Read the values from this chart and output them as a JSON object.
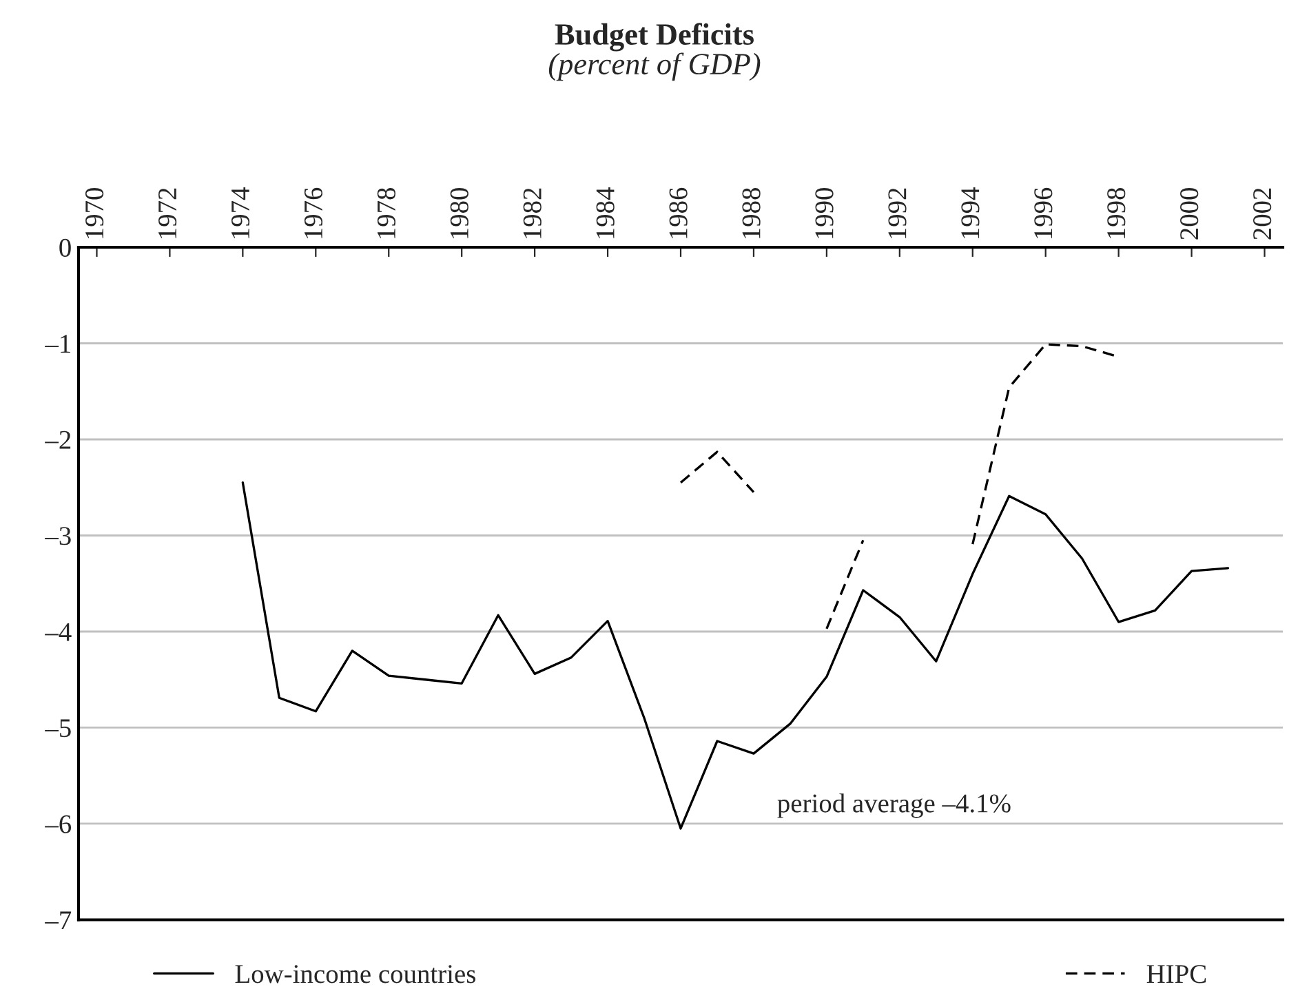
{
  "chart_data": {
    "type": "line",
    "title": "Budget Deficits",
    "subtitle": "(percent of GDP)",
    "x": [
      1974,
      1975,
      1976,
      1977,
      1978,
      1979,
      1980,
      1981,
      1982,
      1983,
      1984,
      1985,
      1986,
      1987,
      1988,
      1989,
      1990,
      1991,
      1992,
      1993,
      1994,
      1995,
      1996,
      1997,
      1998,
      1999,
      2000,
      2001
    ],
    "series": [
      {
        "name": "Low-income countries",
        "color": "#000000",
        "line_style": "solid",
        "values": [
          -2.45,
          -4.69,
          -4.83,
          -4.2,
          -4.46,
          -4.5,
          -4.54,
          -3.83,
          -4.44,
          -4.27,
          -3.89,
          -4.9,
          -6.05,
          -5.14,
          -5.27,
          -4.96,
          -4.47,
          -3.57,
          -3.85,
          -4.31,
          -3.4,
          -2.59,
          -2.78,
          -3.24,
          -3.9,
          -3.78,
          -3.37,
          -3.34
        ]
      },
      {
        "name": "HIPC",
        "color": "#000000",
        "line_style": "dashed",
        "values": [
          null,
          null,
          null,
          null,
          null,
          null,
          null,
          null,
          null,
          null,
          null,
          null,
          -2.45,
          -2.13,
          -2.55,
          null,
          -3.97,
          -3.05,
          null,
          null,
          -3.09,
          -1.46,
          -1.01,
          -1.03,
          -1.14,
          null,
          null,
          null
        ]
      }
    ],
    "xlim": [
      1969.5,
      2002.5
    ],
    "xticks": [
      1970,
      1972,
      1974,
      1976,
      1978,
      1980,
      1982,
      1984,
      1986,
      1988,
      1990,
      1992,
      1994,
      1996,
      1998,
      2000,
      2002
    ],
    "ylim": [
      -7,
      0
    ],
    "yticks": [
      0,
      {
        "value": -1,
        "label": "–1"
      },
      {
        "value": -2,
        "label": "–2"
      },
      {
        "value": -3,
        "label": "–3"
      },
      {
        "value": -4,
        "label": "–4"
      },
      {
        "value": -5,
        "label": "–5"
      },
      {
        "value": -6,
        "label": "–6"
      },
      {
        "value": -7,
        "label": "–7"
      }
    ],
    "grid": "y",
    "legend": "bottom",
    "marker": "none",
    "annotations": [
      "period average –4.1%"
    ]
  }
}
